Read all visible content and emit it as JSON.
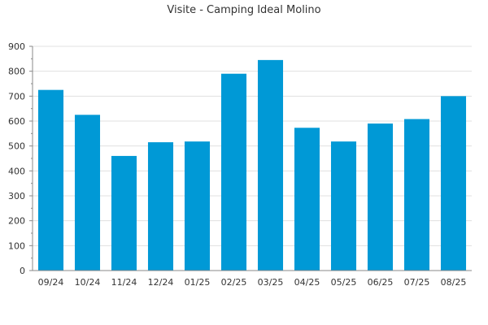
{
  "chart_data": {
    "type": "bar",
    "title": "Visite - Camping Ideal Molino",
    "xlabel": "",
    "ylabel": "",
    "categories": [
      "09/24",
      "10/24",
      "11/24",
      "12/24",
      "01/25",
      "02/25",
      "03/25",
      "04/25",
      "05/25",
      "06/25",
      "07/25",
      "08/25"
    ],
    "values": [
      725,
      625,
      460,
      515,
      518,
      790,
      845,
      573,
      518,
      590,
      608,
      700
    ],
    "ylim": [
      0,
      900
    ],
    "yticks": [
      "0",
      "100",
      "200",
      "300",
      "400",
      "500",
      "600",
      "700",
      "800",
      "900"
    ],
    "grid": true,
    "legend": "none",
    "bar_color": "#0099d6",
    "grid_color": "#e0e0e0",
    "axis_color": "#888888"
  }
}
